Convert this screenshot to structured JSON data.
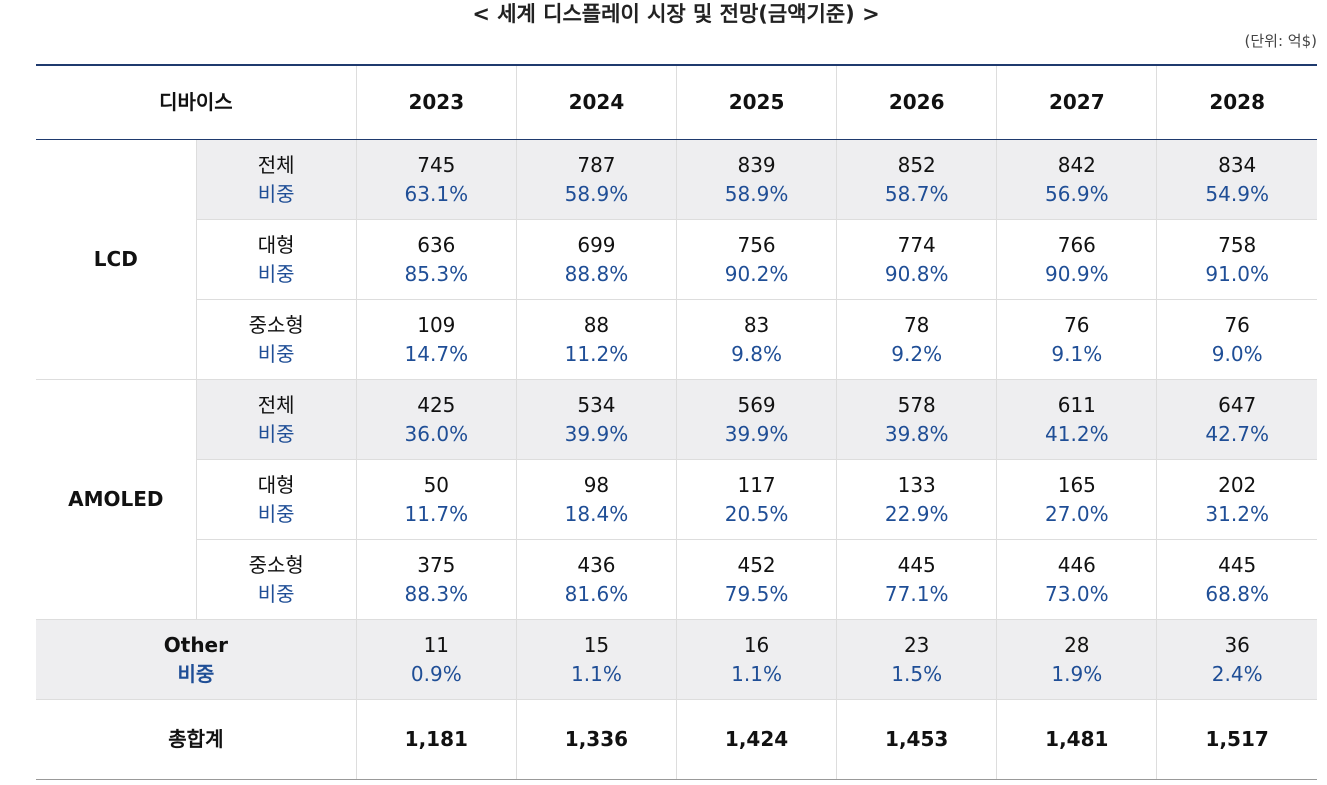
{
  "header": {
    "title": "< 세계 디스플레이 시장 및 전망(금액기준) >",
    "unit": "(단위: 억$)"
  },
  "table": {
    "columns": [
      "디바이스",
      "2023",
      "2024",
      "2025",
      "2026",
      "2027",
      "2028"
    ],
    "groups": [
      {
        "label": "LCD",
        "rows": [
          {
            "label": "전체",
            "share_label": "비중",
            "values": [
              "745",
              "787",
              "839",
              "852",
              "842",
              "834"
            ],
            "shares": [
              "63.1%",
              "58.9%",
              "58.9%",
              "58.7%",
              "56.9%",
              "54.9%"
            ]
          },
          {
            "label": "대형",
            "share_label": "비중",
            "values": [
              "636",
              "699",
              "756",
              "774",
              "766",
              "758"
            ],
            "shares": [
              "85.3%",
              "88.8%",
              "90.2%",
              "90.8%",
              "90.9%",
              "91.0%"
            ]
          },
          {
            "label": "중소형",
            "share_label": "비중",
            "values": [
              "109",
              "88",
              "83",
              "78",
              "76",
              "76"
            ],
            "shares": [
              "14.7%",
              "11.2%",
              "9.8%",
              "9.2%",
              "9.1%",
              "9.0%"
            ]
          }
        ]
      },
      {
        "label": "AMOLED",
        "rows": [
          {
            "label": "전체",
            "share_label": "비중",
            "values": [
              "425",
              "534",
              "569",
              "578",
              "611",
              "647"
            ],
            "shares": [
              "36.0%",
              "39.9%",
              "39.9%",
              "39.8%",
              "41.2%",
              "42.7%"
            ]
          },
          {
            "label": "대형",
            "share_label": "비중",
            "values": [
              "50",
              "98",
              "117",
              "133",
              "165",
              "202"
            ],
            "shares": [
              "11.7%",
              "18.4%",
              "20.5%",
              "22.9%",
              "27.0%",
              "31.2%"
            ]
          },
          {
            "label": "중소형",
            "share_label": "비중",
            "values": [
              "375",
              "436",
              "452",
              "445",
              "446",
              "445"
            ],
            "shares": [
              "88.3%",
              "81.6%",
              "79.5%",
              "77.1%",
              "73.0%",
              "68.8%"
            ]
          }
        ]
      }
    ],
    "other": {
      "label": "Other",
      "share_label": "비중",
      "values": [
        "11",
        "15",
        "16",
        "23",
        "28",
        "36"
      ],
      "shares": [
        "0.9%",
        "1.1%",
        "1.1%",
        "1.5%",
        "1.9%",
        "2.4%"
      ]
    },
    "total": {
      "label": "총합계",
      "values": [
        "1,181",
        "1,336",
        "1,424",
        "1,453",
        "1,481",
        "1,517"
      ]
    }
  }
}
